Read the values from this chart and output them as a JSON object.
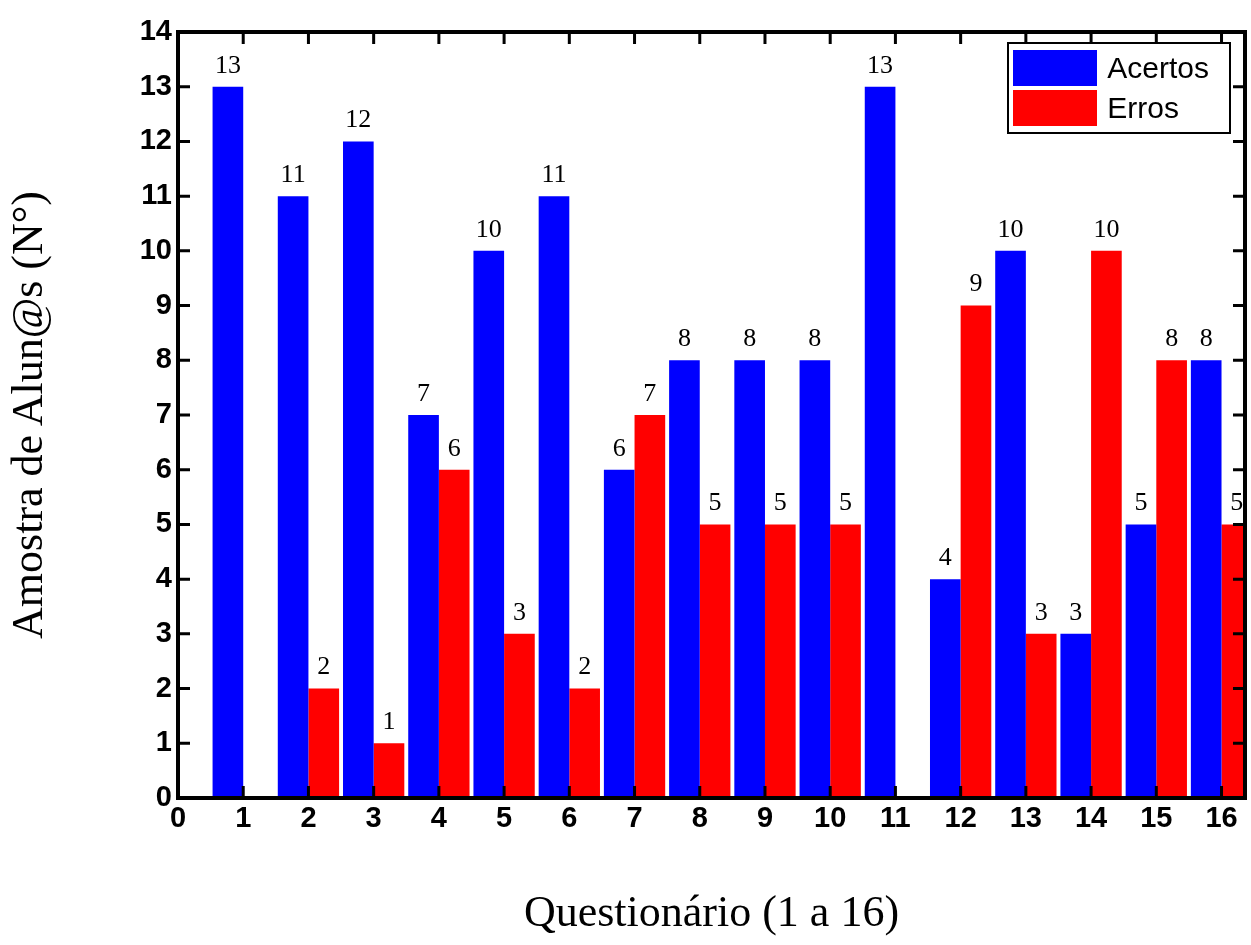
{
  "chart_data": {
    "type": "bar",
    "xlabel": "Questionário (1 a 16)",
    "ylabel": "Amostra de Alun@s (N°)",
    "x": [
      1,
      2,
      3,
      4,
      5,
      6,
      7,
      8,
      9,
      10,
      11,
      12,
      13,
      14,
      15,
      16
    ],
    "series": [
      {
        "name": "Acertos",
        "color": "#0000ff",
        "values": [
          13,
          11,
          12,
          7,
          10,
          11,
          6,
          8,
          8,
          8,
          13,
          4,
          10,
          3,
          5,
          8
        ]
      },
      {
        "name": "Erros",
        "color": "#ff0000",
        "values": [
          null,
          2,
          1,
          6,
          3,
          2,
          7,
          5,
          5,
          5,
          null,
          9,
          3,
          10,
          8,
          5
        ]
      }
    ],
    "xlim": [
      0,
      16.36
    ],
    "xticks": [
      0,
      1,
      2,
      3,
      4,
      5,
      6,
      7,
      8,
      9,
      10,
      11,
      12,
      13,
      14,
      15,
      16
    ],
    "ylim": [
      0,
      14
    ],
    "yticks": [
      0,
      1,
      2,
      3,
      4,
      5,
      6,
      7,
      8,
      9,
      10,
      11,
      12,
      13,
      14
    ],
    "grid": false,
    "legend": "top right",
    "data_labels": true
  }
}
